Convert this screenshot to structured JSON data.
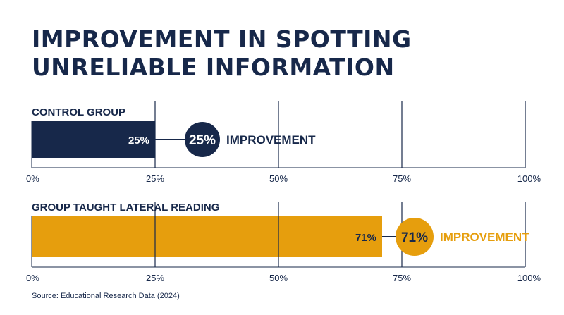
{
  "title": {
    "line1": "IMPROVEMENT IN SPOTTING",
    "line2": "UNRELIABLE INFORMATION"
  },
  "source": "Source: Educational Research Data (2024)",
  "colors": {
    "navy": "#17284a",
    "gold": "#e69e0d",
    "background": "#ffffff"
  },
  "chart_data": [
    {
      "type": "bar",
      "orientation": "horizontal",
      "title": "CONTROL GROUP",
      "xlim": [
        0,
        100
      ],
      "ticks": [
        "0%",
        "25%",
        "50%",
        "75%",
        "100%"
      ],
      "grid": true,
      "value": 25,
      "value_label": "25%",
      "callout_value": "25%",
      "callout_text": "IMPROVEMENT",
      "color": "#17284a"
    },
    {
      "type": "bar",
      "orientation": "horizontal",
      "title": "GROUP TAUGHT LATERAL READING",
      "xlim": [
        0,
        100
      ],
      "ticks": [
        "0%",
        "25%",
        "50%",
        "75%",
        "100%"
      ],
      "grid": true,
      "value": 71,
      "value_label": "71%",
      "callout_value": "71%",
      "callout_text": "IMPROVEMENT",
      "color": "#e69e0d"
    }
  ]
}
